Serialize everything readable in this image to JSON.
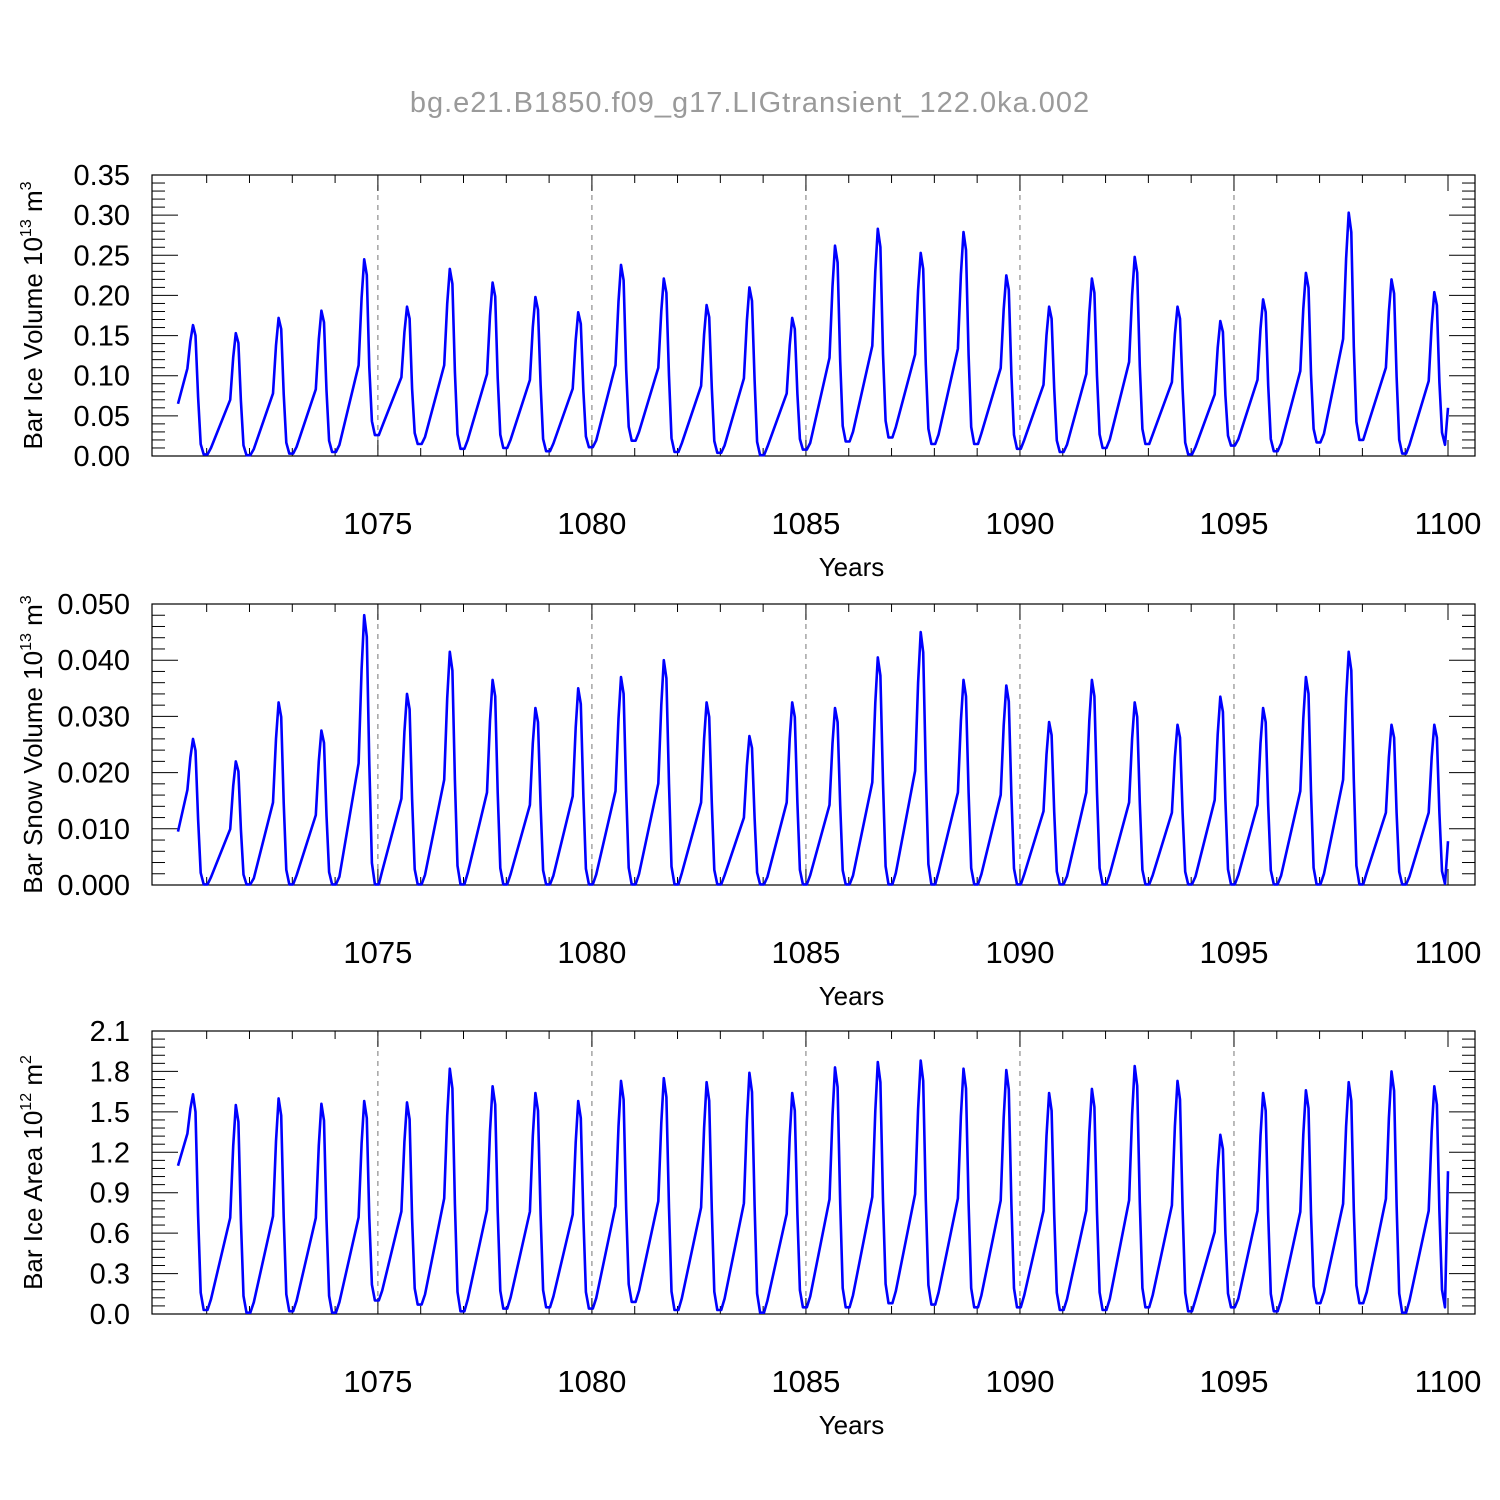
{
  "figure": {
    "title": "bg.e21.B1850.f09_g17.LIGtransient_122.0ka.002"
  },
  "chart_data": [
    {
      "type": "line",
      "ylabel": "Bar Ice Volume 10",
      "ylabel_exp": "13",
      "ylabel_unit": " m",
      "ylabel_unit_exp": "3",
      "xlabel": "Years",
      "xlim": [
        1070.33,
        1100
      ],
      "ylim": [
        0,
        0.35
      ],
      "yticks": [
        "0.00",
        "0.05",
        "0.10",
        "0.15",
        "0.20",
        "0.25",
        "0.30",
        "0.35"
      ],
      "yticks_values": [
        0,
        0.05,
        0.1,
        0.15,
        0.2,
        0.25,
        0.3,
        0.35
      ],
      "xticks": [
        "1075",
        "1080",
        "1085",
        "1090",
        "1095",
        "1100"
      ],
      "xticks_values": [
        1075,
        1080,
        1085,
        1090,
        1095,
        1100
      ],
      "grid": "vertical dashed at major x ticks",
      "line_color": "#0000ff",
      "peaks": [
        0.163,
        0.153,
        0.172,
        0.181,
        0.245,
        0.186,
        0.233,
        0.216,
        0.198,
        0.179,
        0.238,
        0.221,
        0.188,
        0.21,
        0.172,
        0.262,
        0.283,
        0.253,
        0.279,
        0.225,
        0.186,
        0.221,
        0.248,
        0.186,
        0.168,
        0.195,
        0.228,
        0.303,
        0.22,
        0.204
      ],
      "troughs": [
        0.002,
        0.001,
        0.003,
        0.005,
        0.026,
        0.015,
        0.009,
        0.01,
        0.006,
        0.011,
        0.019,
        0.005,
        0.004,
        0.001,
        0.008,
        0.018,
        0.023,
        0.015,
        0.015,
        0.009,
        0.005,
        0.01,
        0.015,
        0.002,
        0.013,
        0.006,
        0.017,
        0.02,
        0.003,
        0.014
      ],
      "start_value": 0.065,
      "end_value": 0.06
    },
    {
      "type": "line",
      "ylabel": "Bar Snow Volume 10",
      "ylabel_exp": "13",
      "ylabel_unit": " m",
      "ylabel_unit_exp": "3",
      "xlabel": "Years",
      "xlim": [
        1070.33,
        1100
      ],
      "ylim": [
        0,
        0.05
      ],
      "yticks": [
        "0.000",
        "0.010",
        "0.020",
        "0.030",
        "0.040",
        "0.050"
      ],
      "yticks_values": [
        0,
        0.01,
        0.02,
        0.03,
        0.04,
        0.05
      ],
      "xticks": [
        "1075",
        "1080",
        "1085",
        "1090",
        "1095",
        "1100"
      ],
      "xticks_values": [
        1075,
        1080,
        1085,
        1090,
        1095,
        1100
      ],
      "grid": "vertical dashed at major x ticks",
      "line_color": "#0000ff",
      "peaks": [
        0.026,
        0.022,
        0.0325,
        0.0275,
        0.048,
        0.034,
        0.0415,
        0.0365,
        0.0315,
        0.035,
        0.037,
        0.04,
        0.0325,
        0.0265,
        0.0325,
        0.0315,
        0.0405,
        0.045,
        0.0365,
        0.0355,
        0.029,
        0.0365,
        0.0325,
        0.0285,
        0.0335,
        0.0315,
        0.037,
        0.0415,
        0.0285,
        0.0285
      ],
      "troughs": [
        0.0001,
        0.0001,
        0.0001,
        0.0001,
        0.0001,
        0.0001,
        0.0001,
        0.0001,
        0.0001,
        0.0001,
        0.0001,
        0.0001,
        0.0001,
        0.0001,
        0.0001,
        0.0001,
        0.0001,
        0.0001,
        0.0001,
        0.0001,
        0.0001,
        0.0001,
        0.0001,
        0.0001,
        0.0001,
        0.0001,
        0.0001,
        0.0001,
        0.0001,
        0.0002
      ],
      "start_value": 0.0095,
      "end_value": 0.0078
    },
    {
      "type": "line",
      "ylabel": "Bar Ice Area 10",
      "ylabel_exp": "12",
      "ylabel_unit": " m",
      "ylabel_unit_exp": "2",
      "xlabel": "Years",
      "xlim": [
        1070.33,
        1100
      ],
      "ylim": [
        0,
        2.1
      ],
      "yticks": [
        "0.0",
        "0.3",
        "0.6",
        "0.9",
        "1.2",
        "1.5",
        "1.8",
        "2.1"
      ],
      "yticks_values": [
        0,
        0.3,
        0.6,
        0.9,
        1.2,
        1.5,
        1.8,
        2.1
      ],
      "xticks": [
        "1075",
        "1080",
        "1085",
        "1090",
        "1095",
        "1100"
      ],
      "xticks_values": [
        1075,
        1080,
        1085,
        1090,
        1095,
        1100
      ],
      "grid": "vertical dashed at major x ticks",
      "line_color": "#0000ff",
      "peaks": [
        1.63,
        1.55,
        1.6,
        1.56,
        1.58,
        1.57,
        1.82,
        1.69,
        1.64,
        1.58,
        1.73,
        1.75,
        1.72,
        1.79,
        1.64,
        1.83,
        1.87,
        1.88,
        1.82,
        1.81,
        1.64,
        1.67,
        1.84,
        1.73,
        1.33,
        1.64,
        1.66,
        1.72,
        1.8,
        1.69
      ],
      "troughs": [
        0.03,
        0.01,
        0.02,
        0.01,
        0.1,
        0.07,
        0.02,
        0.04,
        0.05,
        0.04,
        0.09,
        0.03,
        0.03,
        0.01,
        0.05,
        0.05,
        0.08,
        0.07,
        0.05,
        0.05,
        0.03,
        0.03,
        0.05,
        0.02,
        0.05,
        0.02,
        0.08,
        0.08,
        0.01,
        0.05
      ],
      "start_value": 1.1,
      "end_value": 1.06
    }
  ]
}
